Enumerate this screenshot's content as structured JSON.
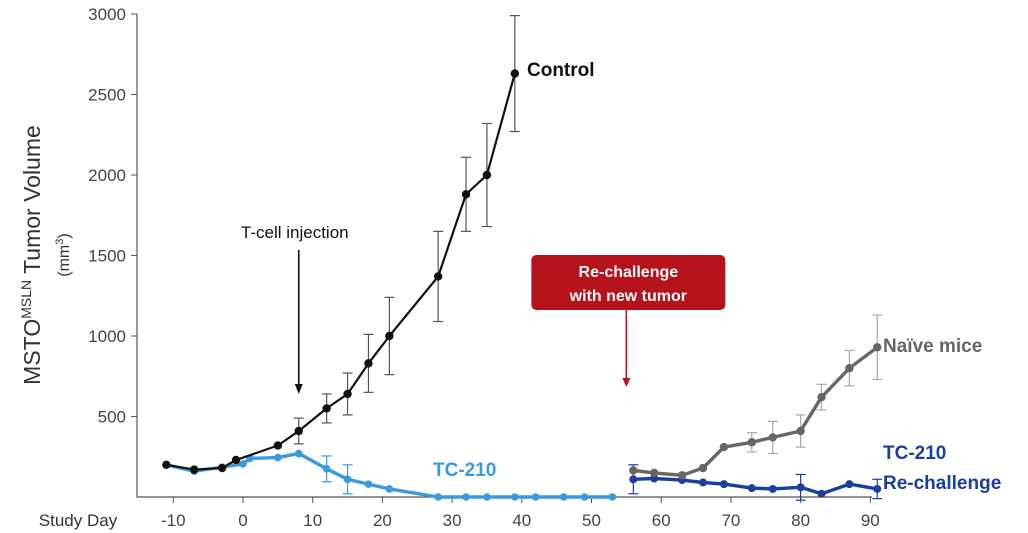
{
  "chart_data": {
    "type": "line",
    "ylabel_main": "MSTO",
    "ylabel_sup": "MSLN",
    "ylabel_tail": " Tumor Volume",
    "yunit_pre": "(mm",
    "yunit_sup": "3",
    "yunit_post": ")",
    "xlabel": "Study Day",
    "xlim": [
      -14,
      95
    ],
    "ylim": [
      0,
      3000
    ],
    "xticks": [
      "-10",
      "0",
      "10",
      "20",
      "30",
      "40",
      "50",
      "60",
      "70",
      "80",
      "90"
    ],
    "yticks": [
      "500",
      "1000",
      "1500",
      "2000",
      "2500",
      "3000"
    ],
    "grid": false,
    "colors": {
      "control": "#111111",
      "tc210": "#3a9ae0",
      "naive": "#666666",
      "rechallenge": "#1a3f9e",
      "callout": "#b5121b"
    },
    "series": [
      {
        "key": "control",
        "name": "Control",
        "x": [
          -11,
          -7,
          -3,
          -1,
          5,
          8,
          12,
          15,
          18,
          21,
          28,
          32,
          35,
          39
        ],
        "y": [
          200,
          170,
          180,
          230,
          320,
          410,
          550,
          640,
          830,
          1000,
          1370,
          1880,
          2000,
          2630
        ],
        "err": [
          0,
          0,
          0,
          0,
          0,
          80,
          90,
          130,
          180,
          240,
          280,
          230,
          320,
          360
        ]
      },
      {
        "key": "tc210",
        "name": "TC-210",
        "x": [
          -11,
          -7,
          -3,
          0,
          1,
          5,
          8,
          12,
          15,
          18,
          21,
          28,
          32,
          35,
          39,
          42,
          46,
          49,
          53
        ],
        "y": [
          200,
          160,
          185,
          205,
          240,
          245,
          270,
          175,
          110,
          80,
          50,
          0,
          0,
          0,
          0,
          0,
          0,
          0,
          0
        ],
        "err": [
          0,
          0,
          0,
          0,
          0,
          0,
          0,
          80,
          90,
          0,
          0,
          0,
          0,
          0,
          0,
          0,
          0,
          0,
          0
        ]
      },
      {
        "key": "naive",
        "name": "Naïve mice",
        "x": [
          56,
          59,
          63,
          66,
          69,
          73,
          76,
          80,
          83,
          87,
          91
        ],
        "y": [
          165,
          150,
          135,
          180,
          310,
          340,
          370,
          410,
          620,
          800,
          930
        ],
        "err": [
          0,
          0,
          0,
          0,
          0,
          60,
          100,
          100,
          80,
          110,
          200
        ]
      },
      {
        "key": "rechallenge",
        "name": "TC-210 Re-challenge",
        "x": [
          56,
          59,
          63,
          66,
          69,
          73,
          76,
          80,
          83,
          87,
          91
        ],
        "y": [
          110,
          115,
          105,
          90,
          80,
          55,
          50,
          60,
          20,
          80,
          50
        ],
        "err": [
          90,
          0,
          0,
          0,
          0,
          0,
          0,
          80,
          0,
          0,
          60
        ]
      }
    ],
    "annotations": {
      "tcell_text": "T-cell injection",
      "tcell_day": 8,
      "rechallenge_line1": "Re-challenge",
      "rechallenge_line2": "with new tumor",
      "rechallenge_day": 55,
      "rechallenge_label_line1": "TC-210",
      "rechallenge_label_line2": "Re-challenge"
    }
  }
}
